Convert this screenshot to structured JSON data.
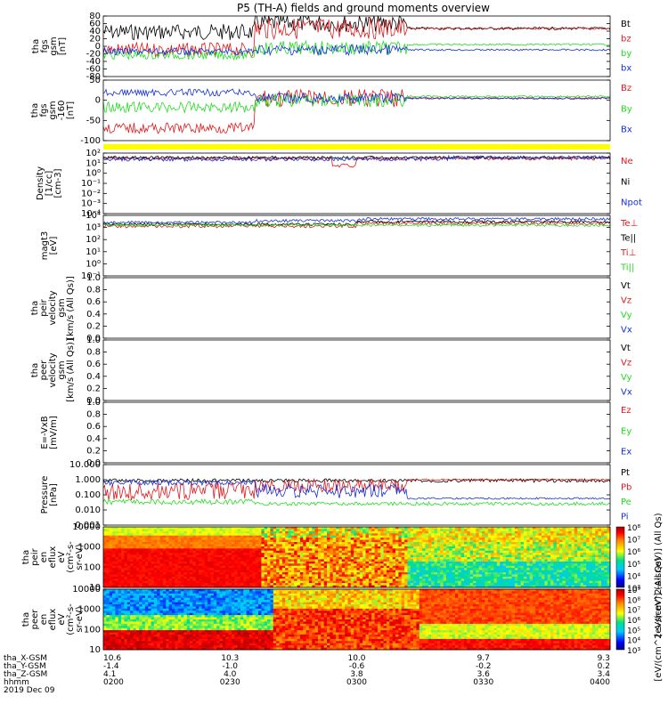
{
  "title": "P5 (TH-A) fields and ground moments overview",
  "colors": {
    "black": "#000000",
    "red": "#e0191c",
    "green": "#22dd22",
    "blue": "#1530d8",
    "status_bar": "#ffff00"
  },
  "chart_data": [
    {
      "type": "line",
      "ylabel_lines": [
        "tha",
        "fgs",
        "gsm",
        "[nT]"
      ],
      "yticks": [
        "80",
        "60",
        "40",
        "20",
        "0",
        "-20",
        "-40",
        "-60",
        "-80"
      ],
      "ylim": [
        -80,
        80
      ],
      "legend": [
        {
          "name": "Bt",
          "color": "#000000"
        },
        {
          "name": "bz",
          "color": "#e0191c"
        },
        {
          "name": "by",
          "color": "#22dd22"
        },
        {
          "name": "bx",
          "color": "#1530d8"
        }
      ]
    },
    {
      "type": "line",
      "ylabel_lines": [
        "tha",
        "fgs",
        "gsm",
        "-160",
        "[nT]"
      ],
      "yticks": [
        "50",
        "0",
        "-50",
        "-100"
      ],
      "ylim": [
        -125,
        60
      ],
      "legend": [
        {
          "name": "Bz",
          "color": "#e0191c"
        },
        {
          "name": "By",
          "color": "#22dd22"
        },
        {
          "name": "Bx",
          "color": "#1530d8"
        }
      ]
    },
    {
      "type": "line",
      "ylabel_lines": [
        "Density",
        "[1/cc]",
        "[cm-3]"
      ],
      "yticks": [
        "10²",
        "10¹",
        "10⁰",
        "10⁻¹",
        "10⁻²",
        "10⁻³",
        "10⁻⁴"
      ],
      "scale": "log",
      "legend": [
        {
          "name": "Ne",
          "color": "#e0191c"
        },
        {
          "name": "Ni",
          "color": "#000000"
        },
        {
          "name": "Npot",
          "color": "#1530d8"
        }
      ]
    },
    {
      "type": "line",
      "ylabel_lines": [
        "magt3",
        "[eV]"
      ],
      "yticks": [
        "10⁴",
        "10³",
        "10²",
        "10¹",
        "10⁰",
        "10⁻¹"
      ],
      "scale": "log",
      "legend": [
        {
          "name": "Te⊥",
          "color": "#e0191c"
        },
        {
          "name": "Te||",
          "color": "#000000"
        },
        {
          "name": "Ti⊥",
          "color": "#e0191c"
        },
        {
          "name": "Ti||",
          "color": "#22dd22"
        }
      ]
    },
    {
      "type": "line",
      "ylabel_lines": [
        "tha",
        "peir",
        "velocity",
        "gsm",
        "[km/s (All Qs)]"
      ],
      "yticks": [
        "1.0",
        "0.8",
        "0.6",
        "0.4",
        "0.2",
        "0.0"
      ],
      "ylim": [
        0,
        1
      ],
      "legend": [
        {
          "name": "Vt",
          "color": "#000000"
        },
        {
          "name": "Vz",
          "color": "#e0191c"
        },
        {
          "name": "Vy",
          "color": "#22dd22"
        },
        {
          "name": "Vx",
          "color": "#1530d8"
        }
      ]
    },
    {
      "type": "line",
      "ylabel_lines": [
        "tha",
        "peer",
        "velocity",
        "gsm",
        "[km/s (All Qs)]"
      ],
      "yticks": [
        "1.0",
        "0.8",
        "0.6",
        "0.4",
        "0.2",
        "0.0"
      ],
      "ylim": [
        0,
        1
      ],
      "legend": [
        {
          "name": "Vt",
          "color": "#000000"
        },
        {
          "name": "Vz",
          "color": "#e0191c"
        },
        {
          "name": "Vy",
          "color": "#22dd22"
        },
        {
          "name": "Vx",
          "color": "#1530d8"
        }
      ]
    },
    {
      "type": "line",
      "ylabel_lines": [
        "E=-VxB",
        "[mV/m]"
      ],
      "yticks": [
        "1.0",
        "0.8",
        "0.6",
        "0.4",
        "0.2",
        "0.0"
      ],
      "ylim": [
        0,
        1
      ],
      "legend": [
        {
          "name": "Ez",
          "color": "#e0191c"
        },
        {
          "name": "Ey",
          "color": "#22dd22"
        },
        {
          "name": "Ex",
          "color": "#1530d8"
        }
      ]
    },
    {
      "type": "line",
      "ylabel_lines": [
        "Pressure",
        "[nPa]"
      ],
      "yticks": [
        "10.000",
        "1.000",
        "0.100",
        "0.010",
        "0.001"
      ],
      "scale": "log",
      "legend": [
        {
          "name": "Pt",
          "color": "#000000"
        },
        {
          "name": "Pb",
          "color": "#e0191c"
        },
        {
          "name": "Pe",
          "color": "#22dd22"
        },
        {
          "name": "Pi",
          "color": "#1530d8"
        }
      ]
    },
    {
      "type": "heatmap",
      "ylabel_lines": [
        "tha",
        "peir",
        "en",
        "eflux",
        "eV",
        "(cm²-s-",
        "sr-eV)"
      ],
      "yticks": [
        "10000",
        "1000",
        "100",
        "10"
      ],
      "scale": "log",
      "colorbar": {
        "label": "[eV/(cm^2-s-sr-eV)] (All Qs)",
        "ticks": [
          "10⁸",
          "10⁷",
          "10⁶",
          "10⁵",
          "10⁴",
          "10³"
        ]
      }
    },
    {
      "type": "heatmap",
      "ylabel_lines": [
        "tha",
        "peer",
        "en",
        "eflux",
        "eV",
        "(cm²-s-",
        "sr-eV)"
      ],
      "yticks": [
        "10000",
        "1000",
        "100",
        "10"
      ],
      "scale": "log",
      "colorbar": {
        "label": "[eV/(cm^2-s-sr-eV)] (All Qs)",
        "ticks": [
          "10⁹",
          "10⁸",
          "10⁷",
          "10⁶",
          "10⁵",
          "10⁴",
          "10³"
        ]
      }
    }
  ],
  "xaxis": {
    "rows": [
      {
        "label": "tha_X-GSM",
        "values": [
          "10.6",
          "10.3",
          "10.0",
          "9.7",
          "9.3"
        ]
      },
      {
        "label": "tha_Y-GSM",
        "values": [
          "-1.4",
          "-1.0",
          "-0.6",
          "-0.2",
          "0.2"
        ]
      },
      {
        "label": "tha_Z-GSM",
        "values": [
          "4.1",
          "4.0",
          "3.8",
          "3.6",
          "3.4"
        ]
      },
      {
        "label": "hhmm",
        "values": [
          "0200",
          "0230",
          "0300",
          "0330",
          "0400"
        ]
      }
    ],
    "date": "2019 Dec 09"
  }
}
